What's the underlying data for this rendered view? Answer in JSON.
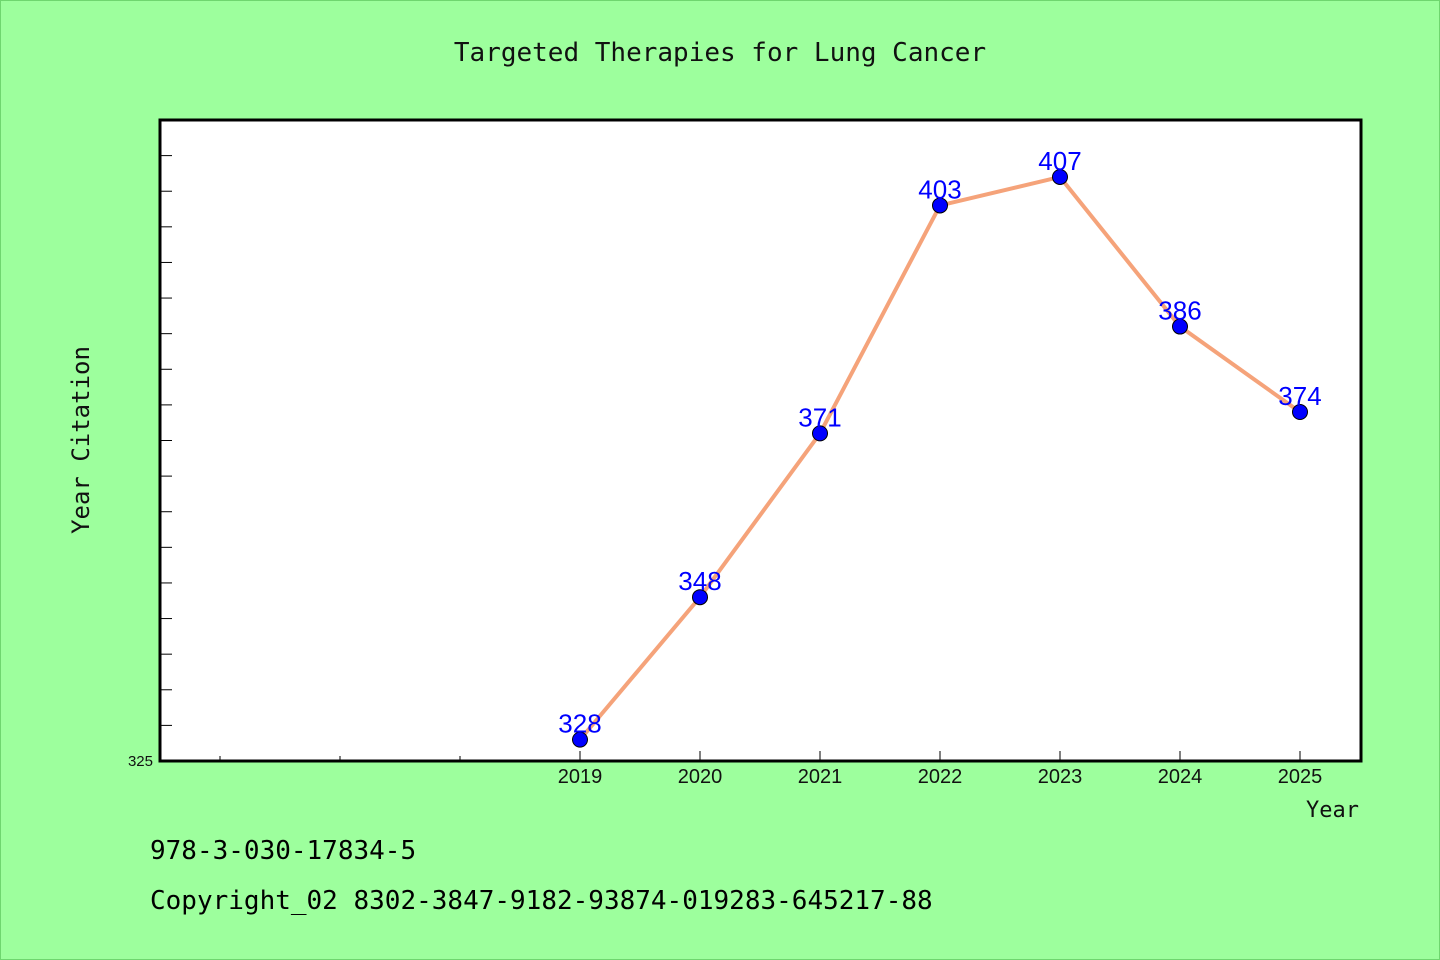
{
  "chart_data": {
    "type": "line",
    "title": "Targeted Therapies for Lung Cancer",
    "xlabel": "Year",
    "ylabel": "Year Citation",
    "categories": [
      "2019",
      "2020",
      "2021",
      "2022",
      "2023",
      "2024",
      "2025"
    ],
    "values": [
      328,
      348,
      371,
      403,
      407,
      386,
      374
    ],
    "data_labels": [
      "328",
      "348",
      "371",
      "403",
      "407",
      "386",
      "374"
    ],
    "ylim": [
      325,
      415
    ],
    "y_min_label": "325",
    "grid": false,
    "legend": "none",
    "colors": {
      "line": "#f5a37a",
      "marker": "#0000ff",
      "data_label": "#0000ff",
      "plot_background": "#ffffff",
      "page_background": "#9dff9d"
    }
  },
  "footer": {
    "isbn": "978-3-030-17834-5",
    "copyright": "Copyright_02 8302-3847-9182-93874-019283-645217-88"
  }
}
